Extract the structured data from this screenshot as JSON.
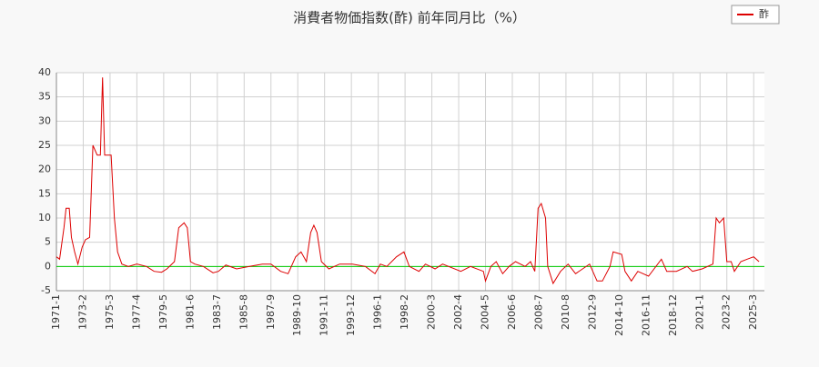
{
  "chart_data": {
    "type": "line",
    "title": "消費者物価指数(酢) 前年同月比（%）",
    "x": [
      "1971-1",
      "1971-4",
      "1971-8",
      "1971-10",
      "1972-1",
      "1972-3",
      "1972-6",
      "1972-9",
      "1973-1",
      "1973-4",
      "1973-8",
      "1973-11",
      "1974-3",
      "1974-6",
      "1974-8",
      "1974-10",
      "1975-1",
      "1975-4",
      "1975-7",
      "1975-10",
      "1976-2",
      "1976-8",
      "1977-4",
      "1978-1",
      "1978-8",
      "1979-3",
      "1979-8",
      "1980-3",
      "1980-7",
      "1980-12",
      "1981-3",
      "1981-6",
      "1981-10",
      "1982-6",
      "1983-3",
      "1983-8",
      "1984-3",
      "1985-1",
      "1986-1",
      "1987-1",
      "1987-9",
      "1988-6",
      "1989-1",
      "1989-8",
      "1990-1",
      "1990-6",
      "1990-10",
      "1991-1",
      "1991-4",
      "1991-8",
      "1992-3",
      "1993-1",
      "1994-1",
      "1995-1",
      "1995-10",
      "1996-3",
      "1996-9",
      "1997-6",
      "1998-1",
      "1998-6",
      "1999-3",
      "1999-9",
      "2000-6",
      "2001-1",
      "2002-6",
      "2003-3",
      "2004-3",
      "2004-5",
      "2004-10",
      "2005-3",
      "2005-9",
      "2006-3",
      "2006-9",
      "2007-6",
      "2007-11",
      "2008-3",
      "2008-6",
      "2008-9",
      "2009-1",
      "2009-3",
      "2009-8",
      "2010-3",
      "2010-10",
      "2011-5",
      "2012-6",
      "2013-1",
      "2013-6",
      "2014-1",
      "2014-4",
      "2014-12",
      "2015-3",
      "2015-9",
      "2016-3",
      "2017-1",
      "2018-1",
      "2018-6",
      "2019-3",
      "2020-1",
      "2020-6",
      "2021-3",
      "2022-1",
      "2022-4",
      "2022-7",
      "2022-11",
      "2023-2",
      "2023-6",
      "2023-9",
      "2024-3",
      "2024-9",
      "2025-3",
      "2025-8"
    ],
    "series": [
      {
        "name": "酢",
        "color": "#dd0000",
        "values": [
          2,
          1.5,
          8,
          12,
          12,
          6,
          3,
          0.5,
          4,
          5.5,
          6,
          25,
          23,
          23,
          39,
          23,
          23,
          23,
          10,
          3,
          0.5,
          0,
          0.5,
          0,
          -1,
          -1.2,
          -0.5,
          1,
          8,
          9,
          8,
          1,
          0.5,
          0,
          -1.3,
          -1,
          0.3,
          -0.5,
          0,
          0.5,
          0.5,
          -1,
          -1.5,
          2,
          3,
          1,
          7,
          8.5,
          7,
          1,
          -0.5,
          0.5,
          0.5,
          0,
          -1.5,
          0.5,
          0,
          2,
          3,
          0,
          -1,
          0.5,
          -0.5,
          0.5,
          -1,
          0,
          -1,
          -3,
          0,
          1,
          -1.5,
          0,
          1,
          0,
          1,
          -1,
          12,
          13,
          10,
          0,
          -3.5,
          -1,
          0.5,
          -1.5,
          0.5,
          -3,
          -3,
          0,
          3,
          2.5,
          -1,
          -3,
          -1,
          -2,
          1.5,
          -1,
          -1,
          0,
          -1,
          -0.5,
          0.5,
          10,
          9,
          10,
          1,
          1,
          -1,
          1,
          1.5,
          2,
          1
        ]
      }
    ],
    "xlim": [
      "1971-1",
      "2026-1"
    ],
    "xticks": [
      "1971-1",
      "1973-2",
      "1975-3",
      "1977-4",
      "1979-5",
      "1981-6",
      "1983-7",
      "1985-8",
      "1987-9",
      "1989-10",
      "1991-11",
      "1993-12",
      "1996-1",
      "1998-2",
      "2000-3",
      "2002-4",
      "2004-5",
      "2006-6",
      "2008-7",
      "2010-8",
      "2012-9",
      "2014-10",
      "2016-11",
      "2018-12",
      "2021-1",
      "2023-2",
      "2025-3"
    ],
    "ylim": [
      -5,
      40
    ],
    "yticks": [
      -5,
      0,
      5,
      10,
      15,
      20,
      25,
      30,
      35,
      40
    ],
    "grid": true,
    "reference_line": {
      "value": 0,
      "color": "#00cc00"
    },
    "legend": "top-right"
  }
}
